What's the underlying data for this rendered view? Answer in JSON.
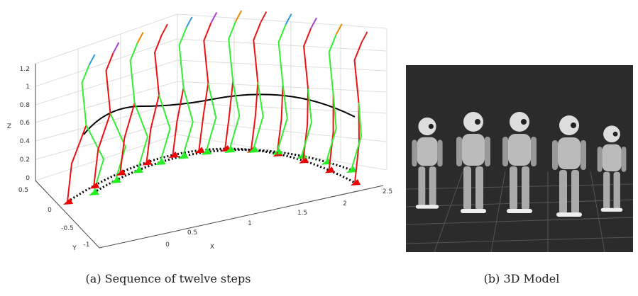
{
  "figure_a": {
    "z_label": "Z",
    "y_label": "Y",
    "x_label": "X",
    "z_ticks": [
      "0",
      "0.2",
      "0.4",
      "0.6",
      "0.8",
      "1",
      "1.2"
    ],
    "y_ticks": [
      "0.5",
      "0",
      "-0.5",
      "-1"
    ],
    "x_ticks": [
      "0",
      "0.5",
      "1",
      "1.5",
      "2",
      "2.5"
    ],
    "caption": "(a) Sequence of twelve steps"
  },
  "figure_b": {
    "caption": "(b) 3D Model"
  }
}
